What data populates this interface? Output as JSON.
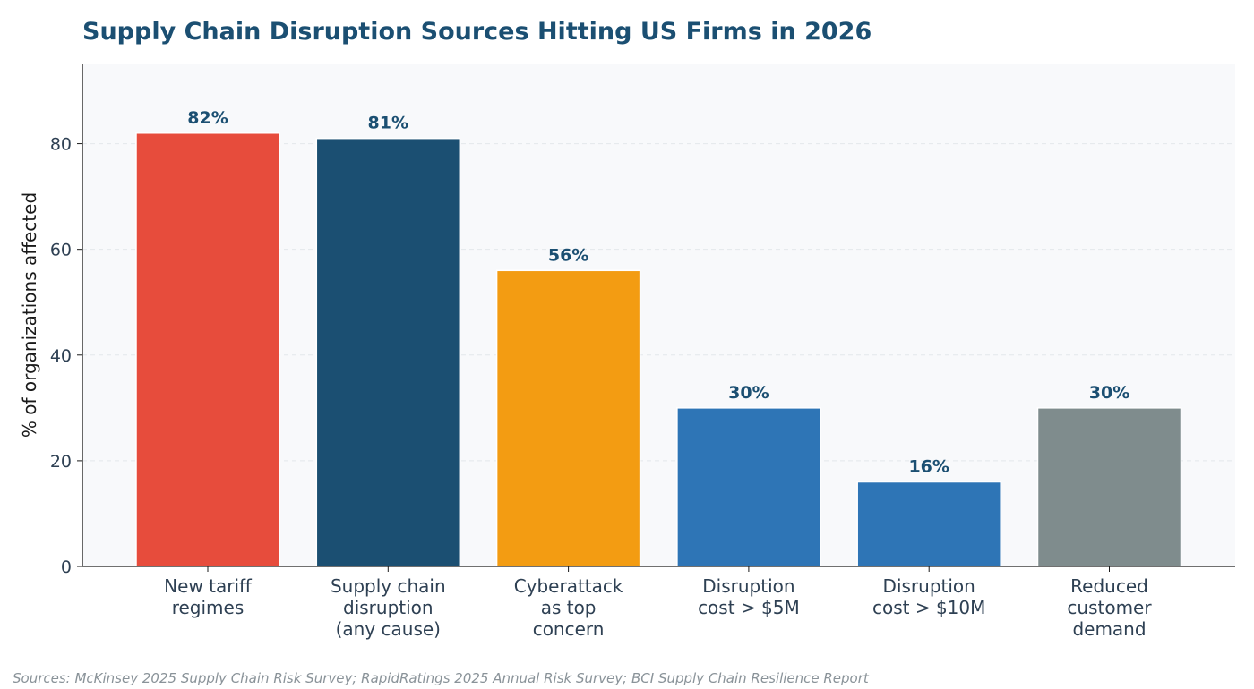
{
  "chart_data": {
    "type": "bar",
    "title": "Supply Chain Disruption Sources Hitting US Firms in 2026",
    "xlabel": "",
    "ylabel": "% of organizations affected",
    "ylim": [
      0,
      95
    ],
    "yticks": [
      0,
      20,
      40,
      60,
      80
    ],
    "grid": "horizontal dashed",
    "categories": [
      [
        "New tariff",
        "regimes"
      ],
      [
        "Supply chain",
        "disruption",
        "(any cause)"
      ],
      [
        "Cyberattack",
        "as top",
        "concern"
      ],
      [
        "Disruption",
        "cost > $5M"
      ],
      [
        "Disruption",
        "cost > $10M"
      ],
      [
        "Reduced",
        "customer",
        "demand"
      ]
    ],
    "values": [
      82,
      81,
      56,
      30,
      16,
      30
    ],
    "value_labels": [
      "82%",
      "81%",
      "56%",
      "30%",
      "16%",
      "30%"
    ],
    "colors": [
      "#e74c3c",
      "#1b4f72",
      "#f39c12",
      "#2e75b6",
      "#2e75b6",
      "#7f8c8d"
    ],
    "background_color": "#f8f9fb",
    "source": "Sources: McKinsey 2025 Supply Chain Risk Survey; RapidRatings 2025 Annual Risk Survey; BCI Supply Chain Resilience Report"
  }
}
